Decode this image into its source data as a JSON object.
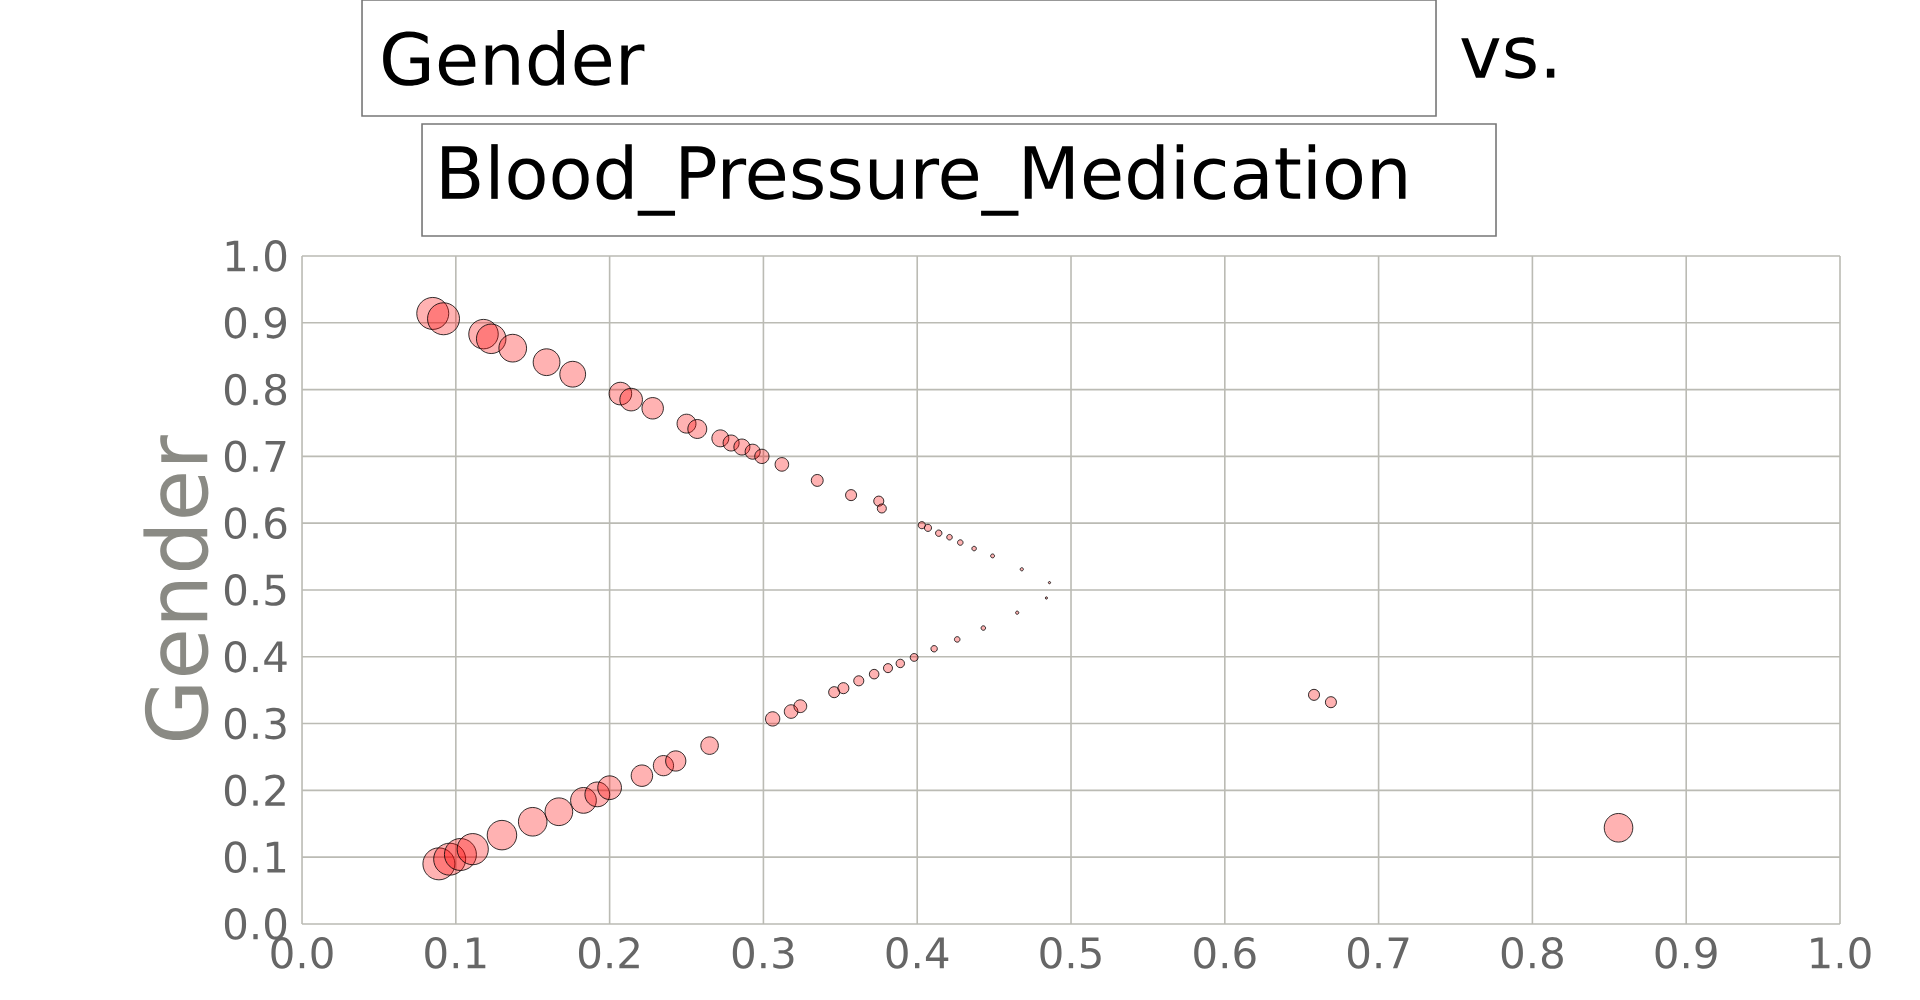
{
  "chart_data": {
    "type": "bubble",
    "title": "Gender",
    "subtitle": "Blood_Pressure_Medication",
    "annotations": [
      "vs."
    ],
    "ylabel": "Gender",
    "color": "#ff0000",
    "grid": true,
    "xlim": [
      0,
      1
    ],
    "ylim": [
      0,
      1
    ],
    "xticks": [
      {
        "value": 0,
        "label": "0.0"
      },
      {
        "value": 0.1,
        "label": "0.1"
      },
      {
        "value": 0.2,
        "label": "0.2"
      },
      {
        "value": 0.3,
        "label": "0.3"
      },
      {
        "value": 0.4,
        "label": "0.4"
      },
      {
        "value": 0.5,
        "label": "0.5"
      },
      {
        "value": 0.6,
        "label": "0.6"
      },
      {
        "value": 0.7,
        "label": "0.7"
      },
      {
        "value": 0.8,
        "label": "0.8"
      },
      {
        "value": 0.9,
        "label": "0.9"
      },
      {
        "value": 1,
        "label": "1.0"
      }
    ],
    "yticks": [
      {
        "value": 0,
        "label": "0.0"
      },
      {
        "value": 0.1,
        "label": "0.1"
      },
      {
        "value": 0.2,
        "label": "0.2"
      },
      {
        "value": 0.3,
        "label": "0.3"
      },
      {
        "value": 0.4,
        "label": "0.4"
      },
      {
        "value": 0.5,
        "label": "0.5"
      },
      {
        "value": 0.6,
        "label": "0.6"
      },
      {
        "value": 0.7,
        "label": "0.7"
      },
      {
        "value": 0.8,
        "label": "0.8"
      },
      {
        "value": 0.9,
        "label": "0.9"
      },
      {
        "value": 1,
        "label": "1.0"
      }
    ],
    "x": [
      0.085,
      0.092,
      0.118,
      0.123,
      0.137,
      0.159,
      0.176,
      0.207,
      0.214,
      0.228,
      0.25,
      0.257,
      0.272,
      0.279,
      0.286,
      0.293,
      0.299,
      0.312,
      0.335,
      0.357,
      0.375,
      0.377,
      0.403,
      0.407,
      0.414,
      0.421,
      0.428,
      0.437,
      0.449,
      0.468,
      0.486,
      0.089,
      0.096,
      0.103,
      0.111,
      0.13,
      0.15,
      0.167,
      0.183,
      0.192,
      0.2,
      0.221,
      0.235,
      0.243,
      0.265,
      0.306,
      0.318,
      0.324,
      0.346,
      0.352,
      0.362,
      0.372,
      0.381,
      0.389,
      0.398,
      0.411,
      0.426,
      0.443,
      0.465,
      0.484,
      0.658,
      0.669,
      0.856
    ],
    "values": [
      0.914,
      0.906,
      0.883,
      0.876,
      0.862,
      0.841,
      0.823,
      0.794,
      0.785,
      0.772,
      0.749,
      0.741,
      0.727,
      0.72,
      0.714,
      0.707,
      0.7,
      0.688,
      0.664,
      0.642,
      0.633,
      0.622,
      0.597,
      0.593,
      0.585,
      0.579,
      0.571,
      0.562,
      0.551,
      0.531,
      0.511,
      0.09,
      0.097,
      0.104,
      0.112,
      0.133,
      0.153,
      0.168,
      0.185,
      0.194,
      0.204,
      0.222,
      0.237,
      0.244,
      0.267,
      0.307,
      0.318,
      0.326,
      0.347,
      0.353,
      0.364,
      0.374,
      0.383,
      0.39,
      0.399,
      0.412,
      0.426,
      0.443,
      0.466,
      0.488,
      0.343,
      0.332,
      0.144
    ],
    "sizes": [
      1,
      1,
      0.85,
      0.85,
      0.75,
      0.7,
      0.65,
      0.5,
      0.5,
      0.45,
      0.35,
      0.35,
      0.28,
      0.25,
      0.25,
      0.22,
      0.2,
      0.18,
      0.14,
      0.12,
      0.1,
      0.08,
      0.05,
      0.05,
      0.04,
      0.03,
      0.03,
      0.02,
      0.015,
      0.01,
      0.005,
      1,
      1,
      1,
      0.95,
      0.85,
      0.8,
      0.75,
      0.65,
      0.6,
      0.55,
      0.45,
      0.4,
      0.4,
      0.3,
      0.2,
      0.18,
      0.16,
      0.12,
      0.12,
      0.1,
      0.09,
      0.08,
      0.07,
      0.06,
      0.04,
      0.03,
      0.02,
      0.01,
      0.005,
      0.12,
      0.12,
      0.8
    ]
  }
}
